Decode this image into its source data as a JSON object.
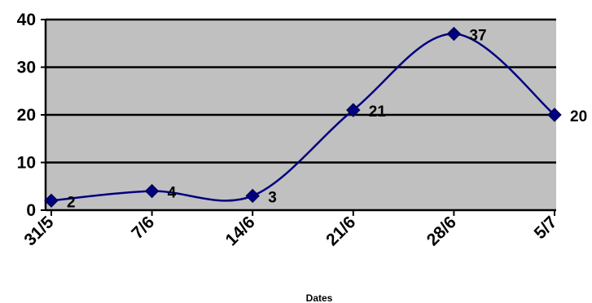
{
  "chart_data": {
    "type": "line",
    "categories": [
      "31/5",
      "7/6",
      "14/6",
      "21/6",
      "28/6",
      "5/7"
    ],
    "x": [
      "2008-05-31",
      "2008-06-07",
      "2008-06-14",
      "2008-06-21",
      "2008-06-28",
      "2008-07-05"
    ],
    "series": [
      {
        "values": [
          2,
          4,
          3,
          21,
          37,
          20
        ],
        "data_labels": [
          "2",
          "4",
          "3",
          "21",
          "37",
          "20"
        ]
      }
    ],
    "y_ticks": [
      "0",
      "10",
      "20",
      "30",
      "40"
    ],
    "ylim": [
      0,
      40
    ],
    "xlabel": "Dates",
    "ylabel": "",
    "title": "",
    "grid": true,
    "legend": "none",
    "colors": {
      "plot_background": "#c0c0c0",
      "gridline": "#000000",
      "series_line": "#000080",
      "marker": "#000080"
    }
  }
}
